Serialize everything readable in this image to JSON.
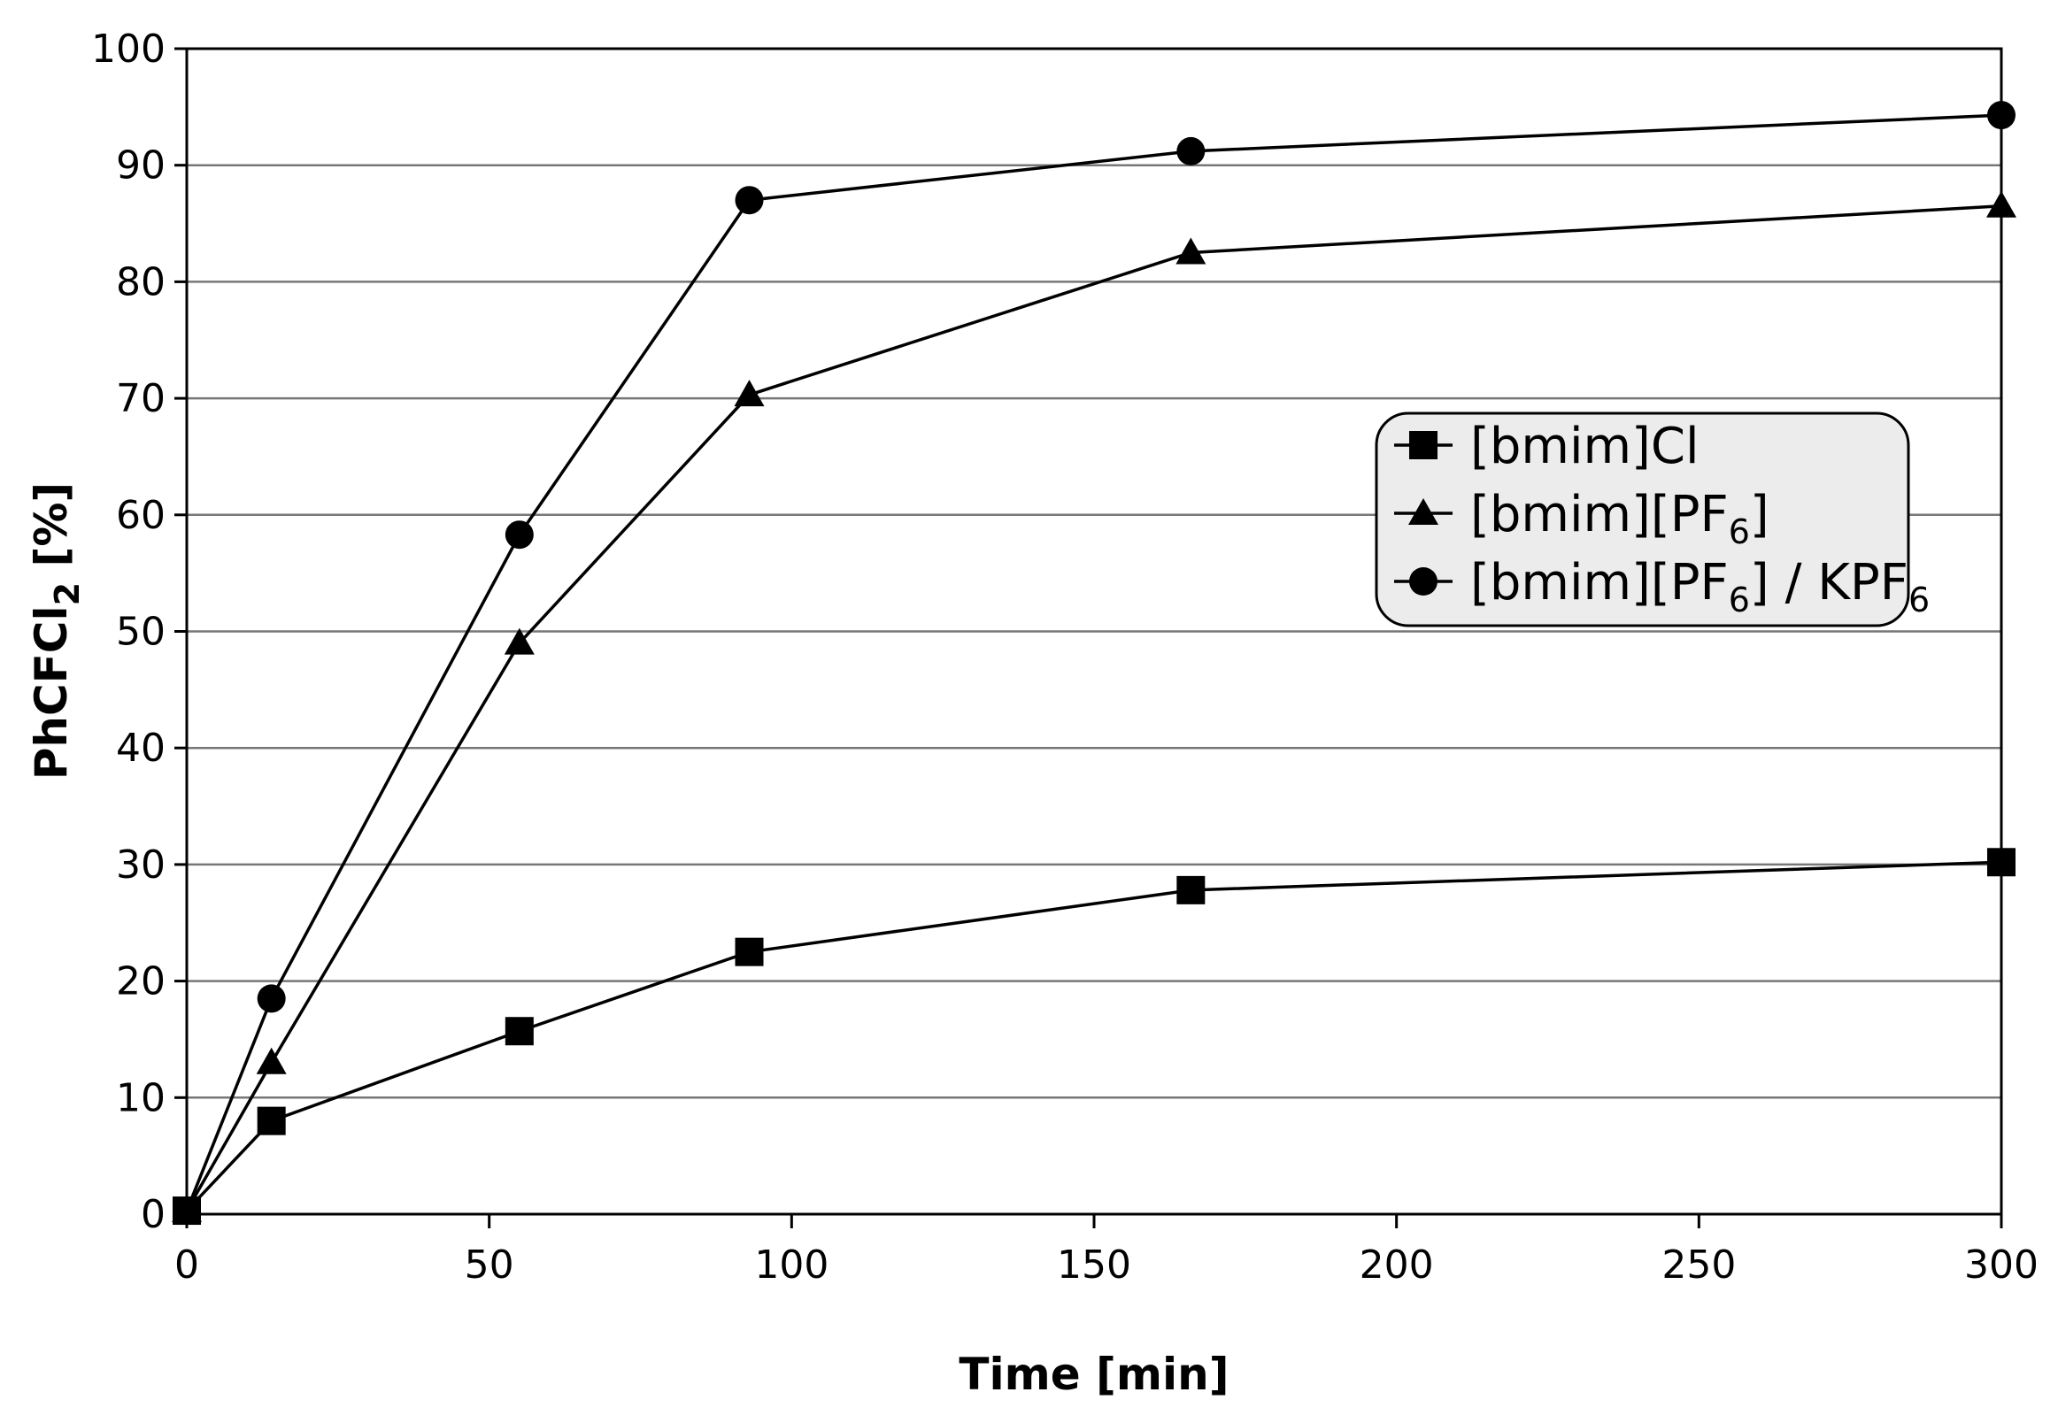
{
  "chart_data": {
    "type": "line",
    "xlabel": "Time [min]",
    "ylabel": {
      "main": "PhCFCl",
      "sub": "2",
      "tail": " [%]"
    },
    "xlim": [
      0,
      300
    ],
    "ylim": [
      0,
      100
    ],
    "xticks": [
      "0",
      "50",
      "100",
      "150",
      "200",
      "250",
      "300"
    ],
    "xtick_values": [
      0,
      50,
      100,
      150,
      200,
      250,
      300
    ],
    "yticks": [
      "0",
      "10",
      "20",
      "30",
      "40",
      "50",
      "60",
      "70",
      "80",
      "90",
      "100"
    ],
    "ytick_values": [
      0,
      10,
      20,
      30,
      40,
      50,
      60,
      70,
      80,
      90,
      100
    ],
    "grid": "horizontal",
    "legend_position": "right",
    "series": [
      {
        "name": "[bmim]Cl",
        "label_parts": [
          {
            "text": "[bmim]Cl"
          }
        ],
        "marker": "square",
        "x": [
          0,
          14,
          55,
          93,
          166,
          300
        ],
        "y": [
          0.3,
          8,
          15.7,
          22.5,
          27.8,
          30.2
        ]
      },
      {
        "name": "[bmim][PF6]",
        "label_parts": [
          {
            "text": "[bmim][PF"
          },
          {
            "text": "6",
            "sub": true
          },
          {
            "text": "]"
          }
        ],
        "marker": "triangle",
        "x": [
          0,
          14,
          55,
          93,
          166,
          300
        ],
        "y": [
          0.3,
          13,
          49,
          70.3,
          82.5,
          86.5
        ]
      },
      {
        "name": "[bmim][PF6] / KPF6",
        "label_parts": [
          {
            "text": "[bmim][PF"
          },
          {
            "text": "6",
            "sub": true
          },
          {
            "text": "] / KPF"
          },
          {
            "text": "6",
            "sub": true
          }
        ],
        "marker": "circle",
        "x": [
          0,
          14,
          55,
          93,
          166,
          300
        ],
        "y": [
          0.3,
          18.5,
          58.3,
          87,
          91.2,
          94.3
        ]
      }
    ]
  }
}
